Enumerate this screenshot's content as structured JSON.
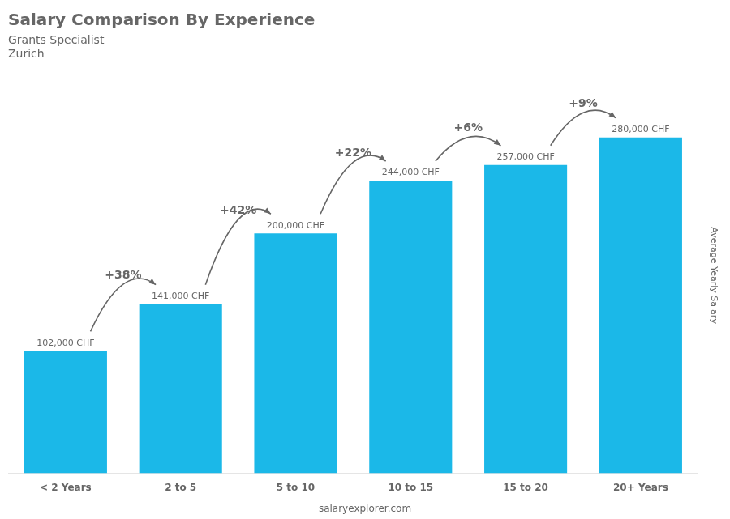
{
  "chart_data": {
    "type": "bar",
    "title": "Salary Comparison By Experience",
    "subtitle": "Grants Specialist",
    "annotations": [
      "Zurich",
      "salaryexplorer.com"
    ],
    "categories": [
      "< 2 Years",
      "2 to 5",
      "5 to 10",
      "10 to 15",
      "15 to 20",
      "20+ Years"
    ],
    "values": [
      102000,
      141000,
      200000,
      244000,
      257000,
      280000
    ],
    "value_labels": [
      "102,000 CHF",
      "141,000 CHF",
      "200,000 CHF",
      "244,000 CHF",
      "257,000 CHF",
      "280,000 CHF"
    ],
    "data_labels": true,
    "change_labels": [
      "+38%",
      "+42%",
      "+22%",
      "+6%",
      "+9%"
    ],
    "color": "#1BB8E8",
    "ylabel": "Average Yearly Salary",
    "ylim": [
      0,
      330000
    ],
    "tick_labels": "x",
    "grid": false,
    "legend": false
  }
}
